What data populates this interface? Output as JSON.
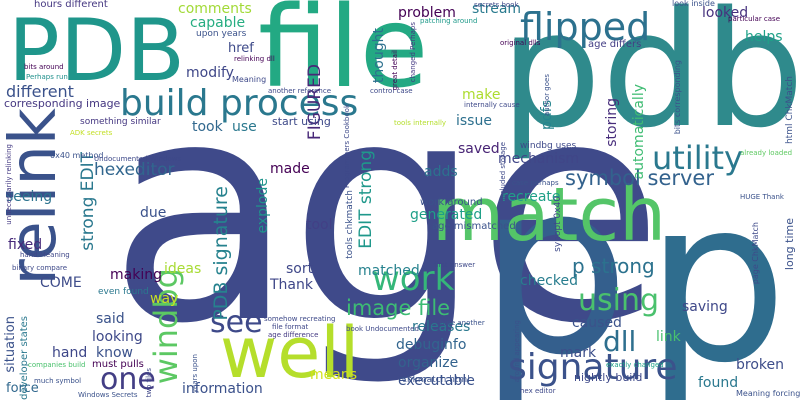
{
  "words": [
    {
      "text": "age",
      "color": "#3f4a8a"
    },
    {
      "text": "pdb",
      "color": "#2f8a8c"
    },
    {
      "text": "p",
      "color": "#345f8d"
    },
    {
      "text": "p",
      "color": "#2f6d8e"
    },
    {
      "text": "file",
      "color": "#23a983"
    },
    {
      "text": "PDB",
      "color": "#1f968b"
    },
    {
      "text": "match",
      "color": "#54c568"
    },
    {
      "text": "relink",
      "color": "#3a528b"
    },
    {
      "text": "well",
      "color": "#b5de2b"
    },
    {
      "text": "build process",
      "color": "#2a788e"
    },
    {
      "text": "flipped",
      "color": "#2c718e"
    },
    {
      "text": "signature",
      "color": "#3b528b"
    },
    {
      "text": "work",
      "color": "#35b779"
    },
    {
      "text": "using",
      "color": "#4ac16d"
    },
    {
      "text": "windbg",
      "color": "#5cc863"
    },
    {
      "text": "utility",
      "color": "#2a788e"
    },
    {
      "text": "image file",
      "color": "#3dbc74"
    },
    {
      "text": "see",
      "color": "#3e4989"
    },
    {
      "text": "one",
      "color": "#433e85"
    },
    {
      "text": "dll",
      "color": "#2e6f8e"
    },
    {
      "text": "PDB signature",
      "color": "#26828e"
    },
    {
      "text": "symbol server",
      "color": "#33628d"
    },
    {
      "text": "p strong",
      "color": "#2c728e"
    },
    {
      "text": "hexeditor",
      "color": "#31668e"
    },
    {
      "text": "EDIT strong",
      "color": "#1f988b"
    },
    {
      "text": "strong EDIT",
      "color": "#2a788e"
    },
    {
      "text": "FIGURED",
      "color": "#482878"
    },
    {
      "text": "comments",
      "color": "#a2da37"
    },
    {
      "text": "capable",
      "color": "#26ad81"
    },
    {
      "text": "modify",
      "color": "#3f4788"
    },
    {
      "text": "different",
      "color": "#3b528b"
    },
    {
      "text": "corresponding image",
      "color": "#453781"
    },
    {
      "text": "href",
      "color": "#3e4a89"
    },
    {
      "text": "thought",
      "color": "#2d708e"
    },
    {
      "text": "problem",
      "color": "#440154"
    },
    {
      "text": "stream",
      "color": "#297a8e"
    },
    {
      "text": "looked",
      "color": "#46327e"
    },
    {
      "text": "helps",
      "color": "#1fa188"
    },
    {
      "text": "pdfs",
      "color": "#25858e"
    },
    {
      "text": "make",
      "color": "#addc30"
    },
    {
      "text": "issue",
      "color": "#2d708e"
    },
    {
      "text": "took",
      "color": "#31688e"
    },
    {
      "text": "use",
      "color": "#2a788e"
    },
    {
      "text": "start using",
      "color": "#3e4a89"
    },
    {
      "text": "saved",
      "color": "#482475"
    },
    {
      "text": "mechanism",
      "color": "#404688"
    },
    {
      "text": "storing",
      "color": "#472d7b"
    },
    {
      "text": "automatically",
      "color": "#3fbc73"
    },
    {
      "text": "adds",
      "color": "#2c728e"
    },
    {
      "text": "made",
      "color": "#440154"
    },
    {
      "text": "explode",
      "color": "#1f948c"
    },
    {
      "text": "generated",
      "color": "#1f9f88"
    },
    {
      "text": "recreate",
      "color": "#1fa088"
    },
    {
      "text": "due",
      "color": "#3b528b"
    },
    {
      "text": "seeing",
      "color": "#2c738e"
    },
    {
      "text": "tool",
      "color": "#424086"
    },
    {
      "text": "fixed",
      "color": "#472a7a"
    },
    {
      "text": "ideas",
      "color": "#a8db34"
    },
    {
      "text": "sort",
      "color": "#3f4889"
    },
    {
      "text": "matched",
      "color": "#26828e"
    },
    {
      "text": "making",
      "color": "#440154"
    },
    {
      "text": "way",
      "color": "#c8e020"
    },
    {
      "text": "COME",
      "color": "#3e4c8a"
    },
    {
      "text": "Thank",
      "color": "#3f4788"
    },
    {
      "text": "checked",
      "color": "#287d8e"
    },
    {
      "text": "said",
      "color": "#3a538b"
    },
    {
      "text": "looking",
      "color": "#3e4989"
    },
    {
      "text": "know",
      "color": "#3b528b"
    },
    {
      "text": "hand",
      "color": "#3f4889"
    },
    {
      "text": "releases",
      "color": "#2a788e"
    },
    {
      "text": "debuginfo",
      "color": "#32658e"
    },
    {
      "text": "organize",
      "color": "#33628d"
    },
    {
      "text": "mark",
      "color": "#3c4f8a"
    },
    {
      "text": "saving",
      "color": "#3f4889"
    },
    {
      "text": "caused",
      "color": "#3b528b"
    },
    {
      "text": "link",
      "color": "#48c16e"
    },
    {
      "text": "broken",
      "color": "#3d4d8a"
    },
    {
      "text": "found",
      "color": "#2a788e"
    },
    {
      "text": "executable",
      "color": "#3b528b"
    },
    {
      "text": "means",
      "color": "#d2e21b"
    },
    {
      "text": "information",
      "color": "#3b518b"
    },
    {
      "text": "situation",
      "color": "#3b528b"
    },
    {
      "text": "force",
      "color": "#31688e"
    },
    {
      "text": "hours different",
      "color": "#453781"
    },
    {
      "text": "upon years",
      "color": "#3b528b"
    },
    {
      "text": "bits around",
      "color": "#440154"
    },
    {
      "text": "Perhaps run",
      "color": "#21918c"
    },
    {
      "text": "relinking dll",
      "color": "#440154"
    },
    {
      "text": "Meaning",
      "color": "#3e4989"
    },
    {
      "text": "another reference",
      "color": "#3e4989"
    },
    {
      "text": "something similar",
      "color": "#453781"
    },
    {
      "text": "ADK secrets",
      "color": "#c2df23"
    },
    {
      "text": "0x40 method",
      "color": "#3b528b"
    },
    {
      "text": "Undocumented Windows",
      "color": "#3e4989"
    },
    {
      "text": "developer states",
      "color": "#2a788e"
    },
    {
      "text": "unnecessarily relinking",
      "color": "#443a83"
    },
    {
      "text": "hand Meaning",
      "color": "#3f4788"
    },
    {
      "text": "binary compare",
      "color": "#3e4989"
    },
    {
      "text": "even found",
      "color": "#2a788e"
    },
    {
      "text": "must pulls",
      "color": "#440154"
    },
    {
      "text": "companies build",
      "color": "#4ac16d"
    },
    {
      "text": "much symbol",
      "color": "#3b528b"
    },
    {
      "text": "Windows Secrets",
      "color": "#3b528b"
    },
    {
      "text": "two files",
      "color": "#3f4788"
    },
    {
      "text": "years upon",
      "color": "#3b528b"
    },
    {
      "text": "control case",
      "color": "#3e4989"
    },
    {
      "text": "great detail",
      "color": "#440154"
    },
    {
      "text": "changed Perhaps",
      "color": "#443983"
    },
    {
      "text": "patching around",
      "color": "#1f9a8a"
    },
    {
      "text": "secrets book",
      "color": "#3e4989"
    },
    {
      "text": "original dlls",
      "color": "#440154"
    },
    {
      "text": "age differs",
      "color": "#433e85"
    },
    {
      "text": "look inside",
      "color": "#3b528b"
    },
    {
      "text": "particular case",
      "color": "#440154"
    },
    {
      "text": "bits corresponding",
      "color": "#3b528b"
    },
    {
      "text": "html ChkMatch",
      "color": "#3b528b"
    },
    {
      "text": "internally cause",
      "color": "#3e4989"
    },
    {
      "text": "author goes",
      "color": "#3b528b"
    },
    {
      "text": "tools internally",
      "color": "#b4de2c"
    },
    {
      "text": "Programmers Cookbook",
      "color": "#3e4989"
    },
    {
      "text": "windbg uses",
      "color": "#3e4989"
    },
    {
      "text": "included storage",
      "color": "#3e4989"
    },
    {
      "text": "already loaded",
      "color": "#5ec962"
    },
    {
      "text": "case perhaps",
      "color": "#3b528b"
    },
    {
      "text": "HUGE Thank",
      "color": "#3b528b"
    },
    {
      "text": "work around",
      "color": "#3b528b"
    },
    {
      "text": "age mismatched",
      "color": "#3b528b"
    },
    {
      "text": "tools chkmatch",
      "color": "#3b528b"
    },
    {
      "text": "synopt 0x40",
      "color": "#3e4989"
    },
    {
      "text": "page ChkMatch",
      "color": "#3e4989"
    },
    {
      "text": "long time",
      "color": "#3b528b"
    },
    {
      "text": "first answer",
      "color": "#3e4989"
    },
    {
      "text": "book Undocumented",
      "color": "#3e4989"
    },
    {
      "text": "somehow recreating",
      "color": "#3e4989"
    },
    {
      "text": "file format",
      "color": "#3f4788"
    },
    {
      "text": "age difference",
      "color": "#443983"
    },
    {
      "text": "hide another",
      "color": "#3b528b"
    },
    {
      "text": "chkmatch html",
      "color": "#3b528b"
    },
    {
      "text": "hex editor",
      "color": "#3e4989"
    },
    {
      "text": "nightly build",
      "color": "#3e4989"
    },
    {
      "text": "around appearing",
      "color": "#3b528b"
    },
    {
      "text": "exactly changed",
      "color": "#1fa088"
    },
    {
      "text": "Meaning forcing",
      "color": "#3b528b"
    }
  ]
}
